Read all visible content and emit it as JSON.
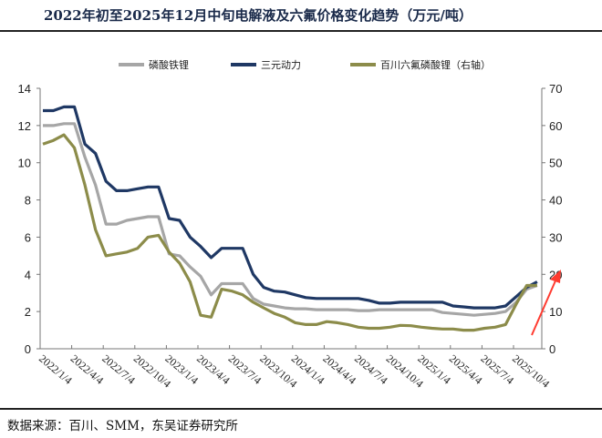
{
  "title": "2022年初至2025年12月中旬电解液及六氟价格变化趋势（万元/吨）",
  "source": "数据来源：百川、SMM，东吴证券研究所",
  "chart_data": {
    "type": "line",
    "title": "2022年初至2025年12月中旬电解液及六氟价格变化趋势（万元/吨）",
    "legend_position": "top",
    "grid": false,
    "x": [
      "2022/1",
      "2022/2",
      "2022/3",
      "2022/4",
      "2022/5",
      "2022/6",
      "2022/7",
      "2022/8",
      "2022/9",
      "2022/10",
      "2022/11",
      "2022/12",
      "2023/1",
      "2023/2",
      "2023/3",
      "2023/4",
      "2023/5",
      "2023/6",
      "2023/7",
      "2023/8",
      "2023/9",
      "2023/10",
      "2023/11",
      "2023/12",
      "2024/1",
      "2024/2",
      "2024/3",
      "2024/4",
      "2024/5",
      "2024/6",
      "2024/7",
      "2024/8",
      "2024/9",
      "2024/10",
      "2024/11",
      "2024/12",
      "2025/1",
      "2025/2",
      "2025/3",
      "2025/4",
      "2025/5",
      "2025/6",
      "2025/7",
      "2025/8",
      "2025/9",
      "2025/10",
      "2025/11",
      "2025/12"
    ],
    "x_tick_labels": [
      "2022/1/4",
      "2022/4/4",
      "2022/7/4",
      "2022/10/4",
      "2023/1/4",
      "2023/4/4",
      "2023/7/4",
      "2023/10/4",
      "2024/1/4",
      "2024/4/4",
      "2024/7/4",
      "2024/10/4",
      "2025/1/4",
      "2025/4/4",
      "2025/7/4",
      "2025/10/4"
    ],
    "y_left": {
      "range": [
        0,
        14
      ],
      "ticks": [
        0,
        2,
        4,
        6,
        8,
        10,
        12,
        14
      ]
    },
    "y_right": {
      "range": [
        0,
        70
      ],
      "ticks": [
        0,
        10,
        20,
        30,
        40,
        50,
        60,
        70
      ]
    },
    "series": [
      {
        "name": "磷酸铁锂",
        "axis": "left",
        "color": "#a6a6a6",
        "values": [
          12.0,
          12.0,
          12.1,
          12.1,
          10.3,
          8.8,
          6.7,
          6.7,
          6.9,
          7.0,
          7.1,
          7.1,
          5.1,
          5.0,
          4.4,
          3.9,
          2.9,
          3.5,
          3.5,
          3.5,
          2.7,
          2.4,
          2.3,
          2.2,
          2.15,
          2.15,
          2.1,
          2.1,
          2.1,
          2.1,
          2.05,
          2.05,
          2.1,
          2.1,
          2.1,
          2.1,
          2.1,
          2.1,
          1.95,
          1.9,
          1.85,
          1.8,
          1.85,
          1.9,
          2.0,
          2.5,
          3.2,
          3.4
        ]
      },
      {
        "name": "三元动力",
        "axis": "left",
        "color": "#1f3864",
        "values": [
          12.8,
          12.8,
          13.0,
          13.0,
          11.0,
          10.5,
          9.0,
          8.5,
          8.5,
          8.6,
          8.7,
          8.7,
          7.0,
          6.9,
          6.0,
          5.5,
          4.9,
          5.4,
          5.4,
          5.4,
          4.0,
          3.3,
          3.1,
          3.05,
          2.9,
          2.75,
          2.7,
          2.7,
          2.7,
          2.7,
          2.7,
          2.6,
          2.45,
          2.45,
          2.5,
          2.5,
          2.5,
          2.5,
          2.5,
          2.3,
          2.25,
          2.2,
          2.2,
          2.2,
          2.3,
          2.8,
          3.3,
          3.6
        ]
      },
      {
        "name": "百川六氟磷酸锂（右轴）",
        "axis": "right",
        "color": "#8c8c4a",
        "values": [
          55,
          56,
          57.5,
          54,
          44,
          32,
          25,
          25.5,
          26,
          27,
          30,
          30.5,
          26,
          23,
          18,
          9,
          8.5,
          16,
          15.5,
          14.5,
          12.5,
          11,
          9.5,
          8.5,
          7,
          6.5,
          6.5,
          7.3,
          7,
          6.5,
          5.8,
          5.5,
          5.5,
          5.8,
          6.3,
          6.2,
          5.8,
          5.5,
          5.3,
          5.3,
          5,
          5,
          5.5,
          5.8,
          6.5,
          12,
          17,
          17
        ]
      }
    ],
    "annotations": [
      {
        "type": "arrow",
        "color": "#ff3b30"
      }
    ]
  }
}
